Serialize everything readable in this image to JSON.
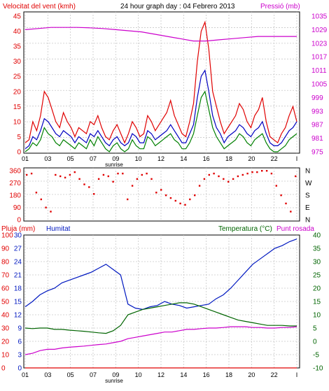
{
  "colors": {
    "frame": "#000000",
    "grid": "#c8c8c8",
    "wind": "#e00000",
    "gust_green": "#008000",
    "avg_blue": "#0000c0",
    "pressure": "#cc00cc",
    "humidity": "#0018c0",
    "temperature": "#006400",
    "dewpoint": "#cc00cc",
    "rain": "#e00000",
    "dir": "#e00000"
  },
  "header": {
    "left_label": "Velocitat del vent (kmh)",
    "center_title": "24 hour graph day : 04 Febrero 2013",
    "right_label": "Pressió (mb)"
  },
  "bottom_header": {
    "rain_label": "Pluja (mm)",
    "humidity_label": "Humitat",
    "temp_label": "Temperatura (°C)",
    "dew_label": "Punt rosada"
  },
  "x_axis": {
    "ticks": [
      "01",
      "03",
      "05",
      "07",
      "09",
      "10",
      "12",
      "14",
      "16",
      "18",
      "20",
      "22",
      "I"
    ],
    "sunrise_label": "sunrise"
  },
  "chart_data": [
    {
      "type": "line",
      "id": "wind_pressure",
      "xlabel": "",
      "yleft": {
        "label": "Velocitat del vent (kmh)",
        "ticks": [
          "0",
          "5",
          "10",
          "15",
          "20",
          "25",
          "30",
          "35",
          "40",
          "45"
        ],
        "range": [
          0,
          45
        ]
      },
      "yright": {
        "label": "Pressió (mb)",
        "ticks": [
          "975",
          "981",
          "987",
          "993",
          "999",
          "1005",
          "1011",
          "1017",
          "1023",
          "1029",
          "1035"
        ],
        "range": [
          975,
          1035
        ]
      },
      "series": [
        {
          "name": "Velocitat del vent (kmh)",
          "color": "#e00000",
          "values": [
            3,
            4,
            10,
            7,
            12,
            20,
            18,
            14,
            10,
            8,
            13,
            10,
            8,
            5,
            8,
            7,
            6,
            10,
            9,
            12,
            8,
            5,
            4,
            7,
            9,
            6,
            3,
            6,
            10,
            8,
            5,
            6,
            12,
            10,
            7,
            9,
            11,
            13,
            17,
            12,
            9,
            6,
            5,
            10,
            16,
            30,
            40,
            43,
            34,
            20,
            15,
            10,
            6,
            8,
            10,
            12,
            16,
            14,
            10,
            8,
            12,
            14,
            18,
            10,
            5,
            4,
            3,
            6,
            8,
            12,
            15,
            10
          ]
        },
        {
          "name": "",
          "color": "#0000c0",
          "values": [
            1,
            2,
            5,
            4,
            7,
            11,
            10,
            8,
            6,
            5,
            7,
            6,
            5,
            3,
            5,
            4,
            3,
            6,
            5,
            7,
            5,
            3,
            2,
            4,
            5,
            3,
            2,
            3,
            6,
            5,
            3,
            3,
            7,
            6,
            4,
            5,
            6,
            7,
            9,
            7,
            5,
            3,
            3,
            6,
            9,
            18,
            25,
            27,
            20,
            12,
            8,
            6,
            3,
            5,
            6,
            7,
            9,
            8,
            6,
            5,
            7,
            8,
            10,
            6,
            3,
            2,
            2,
            3,
            5,
            7,
            8,
            10
          ]
        },
        {
          "name": "",
          "color": "#008000",
          "values": [
            0,
            1,
            3,
            2,
            4,
            8,
            6,
            5,
            3,
            2,
            4,
            3,
            2,
            1,
            3,
            2,
            1,
            4,
            2,
            5,
            3,
            1,
            0,
            2,
            3,
            1,
            0,
            1,
            4,
            2,
            1,
            1,
            5,
            4,
            2,
            3,
            4,
            5,
            6,
            4,
            3,
            1,
            1,
            3,
            6,
            12,
            18,
            20,
            14,
            8,
            5,
            3,
            1,
            2,
            3,
            4,
            6,
            5,
            3,
            2,
            4,
            5,
            6,
            3,
            1,
            0,
            0,
            1,
            2,
            4,
            5,
            6
          ]
        },
        {
          "name": "Pressió (mb)",
          "color": "#cc00cc",
          "values": [
            1029,
            1029.5,
            1030,
            1030,
            1030,
            1029.8,
            1029.5,
            1029,
            1028.5,
            1028,
            1027,
            1026,
            1025,
            1024,
            1024,
            1024.5,
            1025,
            1025.5,
            1026,
            1026,
            1026,
            1026
          ]
        }
      ]
    },
    {
      "type": "scatter",
      "id": "wind_direction",
      "yleft": {
        "ticks": [
          "0",
          "90",
          "180",
          "270",
          "360"
        ],
        "range": [
          0,
          360
        ]
      },
      "yright": {
        "ticks": [
          "N",
          "E",
          "S",
          "W",
          "N"
        ]
      },
      "series": [
        {
          "name": "",
          "color": "#e00000",
          "values": [
            330,
            340,
            200,
            150,
            90,
            60,
            330,
            320,
            310,
            330,
            350,
            300,
            260,
            240,
            190,
            300,
            330,
            320,
            280,
            340,
            340,
            150,
            250,
            300,
            330,
            340,
            300,
            200,
            220,
            180,
            160,
            140,
            120,
            110,
            150,
            180,
            250,
            300,
            330,
            340,
            320,
            300,
            280,
            300,
            320,
            330,
            340,
            350,
            350,
            360,
            360,
            340,
            250,
            180,
            120,
            60,
            320
          ]
        }
      ]
    },
    {
      "type": "line",
      "id": "rain_humidity_temp",
      "yleft_rain": {
        "label": "Pluja (mm)",
        "ticks": [
          "0",
          "10",
          "20",
          "30",
          "40",
          "50",
          "60",
          "70",
          "80",
          "90",
          "100"
        ],
        "range": [
          0,
          100
        ]
      },
      "yleft_hum": {
        "label": "Humitat",
        "ticks": [
          "0",
          "3",
          "6",
          "9",
          "12",
          "15",
          "18",
          "21",
          "24",
          "27",
          "30"
        ],
        "range": [
          0,
          30
        ]
      },
      "yright": {
        "label": "Temperatura (°C)",
        "ticks": [
          "-10",
          "-5",
          "0",
          "5",
          "10",
          "15",
          "20",
          "25",
          "30",
          "35",
          "40"
        ],
        "range": [
          -10,
          40
        ]
      },
      "series": [
        {
          "name": "Humitat",
          "color": "#0018c0",
          "values": [
            46,
            50,
            55,
            58,
            60,
            64,
            66,
            68,
            70,
            72,
            75,
            78,
            74,
            70,
            48,
            45,
            44,
            46,
            47,
            50,
            48,
            47,
            45,
            46,
            47,
            48,
            52,
            55,
            60,
            66,
            72,
            78,
            82,
            86,
            90,
            92,
            95,
            97
          ]
        },
        {
          "name": "Temperatura (°C)",
          "color": "#006400",
          "values": [
            5,
            4.8,
            5,
            5,
            4.5,
            4.5,
            4.2,
            4,
            3.8,
            3.5,
            3.2,
            3,
            4,
            6,
            10,
            11,
            12,
            12.5,
            13,
            13.5,
            14,
            14.5,
            14.5,
            14,
            13,
            12,
            11,
            10,
            9,
            8,
            7.5,
            7,
            6.5,
            6,
            6,
            6,
            5.8,
            5.8
          ]
        },
        {
          "name": "Punt rosada",
          "color": "#cc00cc",
          "values": [
            -5,
            -4.5,
            -3.5,
            -3,
            -3,
            -2.5,
            -2.2,
            -2,
            -1.8,
            -1.5,
            -1.2,
            -1,
            -0.5,
            0,
            1,
            1.5,
            2,
            2.5,
            3,
            3.5,
            3.5,
            4,
            4.5,
            4.5,
            4.8,
            5,
            5,
            5.2,
            5.5,
            5.5,
            5.5,
            5.2,
            5.2,
            5,
            5,
            5.2,
            5.2,
            5.5
          ]
        },
        {
          "name": "Pluja (mm)",
          "color": "#e00000",
          "values": [
            0,
            0,
            0,
            0,
            0,
            0,
            0,
            0,
            0,
            0,
            0,
            0,
            0,
            0,
            0,
            0,
            0,
            0,
            0,
            0,
            0,
            0,
            0,
            0,
            0,
            0,
            0,
            0,
            0,
            0,
            0,
            0,
            0,
            0,
            0,
            0,
            0,
            0
          ]
        }
      ]
    }
  ]
}
